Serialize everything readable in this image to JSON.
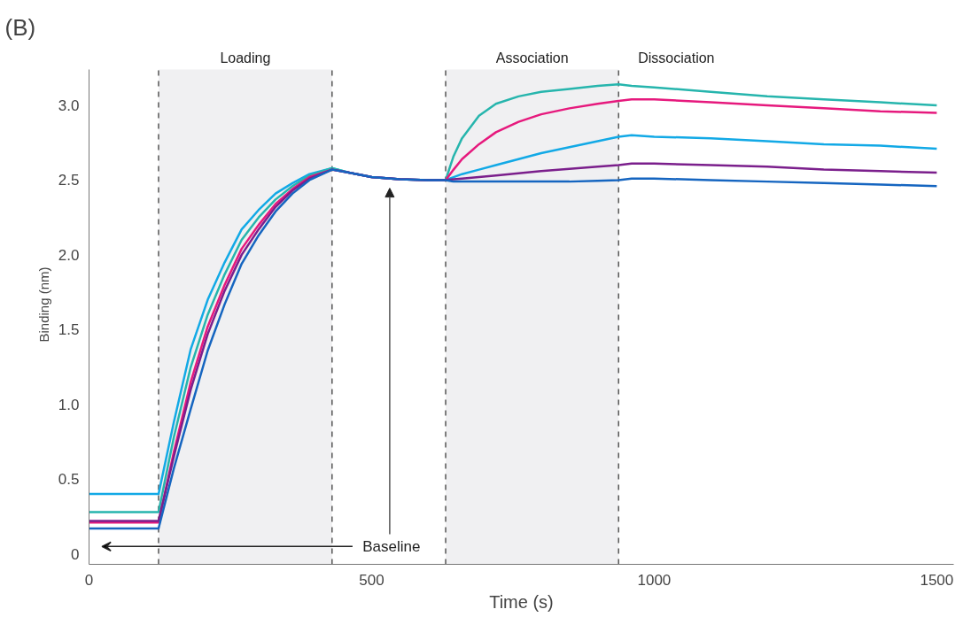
{
  "chart_data": {
    "type": "line",
    "title": "(B)",
    "xlabel": "Time (s)",
    "ylabel": "Binding (nm)",
    "x": [
      0,
      123,
      150,
      180,
      210,
      240,
      270,
      300,
      330,
      360,
      390,
      430,
      460,
      500,
      550,
      600,
      631,
      645,
      660,
      690,
      720,
      760,
      800,
      850,
      900,
      937,
      960,
      1000,
      1100,
      1200,
      1300,
      1400,
      1500
    ],
    "series": [
      {
        "color": "#12a9e6",
        "values": [
          0.4,
          0.4,
          0.88,
          1.37,
          1.7,
          1.95,
          2.17,
          2.3,
          2.41,
          2.48,
          2.54,
          2.58,
          2.55,
          2.52,
          2.505,
          2.5,
          2.5,
          2.52,
          2.54,
          2.57,
          2.6,
          2.64,
          2.68,
          2.72,
          2.76,
          2.79,
          2.8,
          2.79,
          2.78,
          2.76,
          2.74,
          2.73,
          2.71
        ]
      },
      {
        "color": "#26b5ad",
        "values": [
          0.28,
          0.28,
          0.78,
          1.25,
          1.6,
          1.87,
          2.1,
          2.25,
          2.37,
          2.46,
          2.53,
          2.58,
          2.55,
          2.52,
          2.505,
          2.5,
          2.5,
          2.66,
          2.78,
          2.93,
          3.01,
          3.06,
          3.09,
          3.11,
          3.13,
          3.14,
          3.13,
          3.12,
          3.09,
          3.06,
          3.04,
          3.02,
          3.0
        ]
      },
      {
        "color": "#e6197d",
        "values": [
          0.21,
          0.21,
          0.68,
          1.15,
          1.52,
          1.8,
          2.04,
          2.2,
          2.34,
          2.44,
          2.52,
          2.57,
          2.55,
          2.52,
          2.505,
          2.5,
          2.5,
          2.57,
          2.64,
          2.74,
          2.82,
          2.89,
          2.94,
          2.98,
          3.01,
          3.03,
          3.04,
          3.04,
          3.02,
          3.0,
          2.98,
          2.96,
          2.95
        ]
      },
      {
        "color": "#7b1f8c",
        "values": [
          0.22,
          0.22,
          0.65,
          1.1,
          1.47,
          1.76,
          2.0,
          2.17,
          2.32,
          2.43,
          2.51,
          2.57,
          2.55,
          2.52,
          2.505,
          2.5,
          2.5,
          2.505,
          2.51,
          2.52,
          2.53,
          2.545,
          2.56,
          2.575,
          2.59,
          2.6,
          2.61,
          2.61,
          2.6,
          2.59,
          2.57,
          2.56,
          2.55
        ]
      },
      {
        "color": "#1565c0",
        "values": [
          0.17,
          0.17,
          0.57,
          0.97,
          1.36,
          1.67,
          1.94,
          2.13,
          2.29,
          2.41,
          2.5,
          2.57,
          2.55,
          2.52,
          2.505,
          2.5,
          2.5,
          2.49,
          2.49,
          2.49,
          2.49,
          2.49,
          2.49,
          2.49,
          2.495,
          2.5,
          2.51,
          2.51,
          2.5,
          2.49,
          2.48,
          2.47,
          2.46
        ]
      }
    ],
    "xlim": [
      0,
      1530
    ],
    "ylim": [
      -0.07,
      3.24
    ],
    "xticks": [
      0,
      500,
      1000,
      1500
    ],
    "yticks": [
      0,
      0.5,
      {
        "value": 1,
        "label": "1.0"
      },
      1.5,
      {
        "value": 2,
        "label": "2.0"
      },
      2.5,
      {
        "value": 3,
        "label": "3.0"
      }
    ],
    "bands": [
      {
        "axis": "x",
        "from": 123,
        "to": 430,
        "label": "Loading",
        "color": "#f0f0f2"
      },
      {
        "axis": "x",
        "from": 631,
        "to": 937,
        "label": "Association",
        "color": "#f0f0f2"
      }
    ],
    "ref_lines": [
      {
        "axis": "x",
        "value": 123,
        "line_style": "dashed",
        "color": "#555555"
      },
      {
        "axis": "x",
        "value": 430,
        "line_style": "dashed",
        "color": "#555555"
      },
      {
        "axis": "x",
        "value": 631,
        "line_style": "dashed",
        "color": "#555555"
      },
      {
        "axis": "x",
        "value": 937,
        "line_style": "dashed",
        "color": "#555555"
      }
    ],
    "annotations": [
      "Baseline",
      "Dissociation"
    ],
    "grid": false,
    "marker": "none",
    "line_style": "solid"
  }
}
